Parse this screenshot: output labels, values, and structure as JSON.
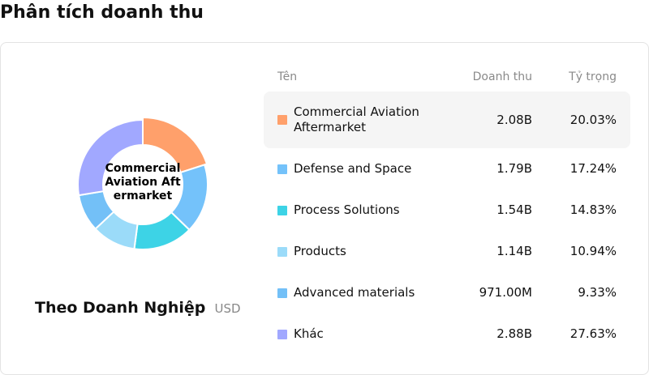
{
  "page_title": "Phân tích doanh thu",
  "subtitle": "Theo Doanh Nghiệp",
  "unit": "USD",
  "center_label": "Commercial Aviation Aftermarket",
  "table": {
    "headers": {
      "name": "Tên",
      "revenue": "Doanh thu",
      "share": "Tỷ trọng"
    },
    "rows": [
      {
        "name": "Commercial Aviation Aftermarket",
        "revenue": "2.08B",
        "share": "20.03%",
        "color": "#FFA06B"
      },
      {
        "name": "Defense and Space",
        "revenue": "1.79B",
        "share": "17.24%",
        "color": "#74C2FA"
      },
      {
        "name": "Process Solutions",
        "revenue": "1.54B",
        "share": "14.83%",
        "color": "#3DD3E6"
      },
      {
        "name": "Products",
        "revenue": "1.14B",
        "share": "10.94%",
        "color": "#9BDBF9"
      },
      {
        "name": "Advanced materials",
        "revenue": "971.00M",
        "share": "9.33%",
        "color": "#73C0F7"
      },
      {
        "name": "Khác",
        "revenue": "2.88B",
        "share": "27.63%",
        "color": "#A1A8FF"
      }
    ]
  },
  "chart_data": {
    "type": "pie",
    "categories": [
      "Commercial Aviation Aftermarket",
      "Defense and Space",
      "Process Solutions",
      "Products",
      "Advanced materials",
      "Khác"
    ],
    "values": [
      20.03,
      17.24,
      14.83,
      10.94,
      9.33,
      27.63
    ],
    "colors": [
      "#FFA06B",
      "#74C2FA",
      "#3DD3E6",
      "#9BDBF9",
      "#73C0F7",
      "#A1A8FF"
    ],
    "highlighted": "Commercial Aviation Aftermarket"
  }
}
